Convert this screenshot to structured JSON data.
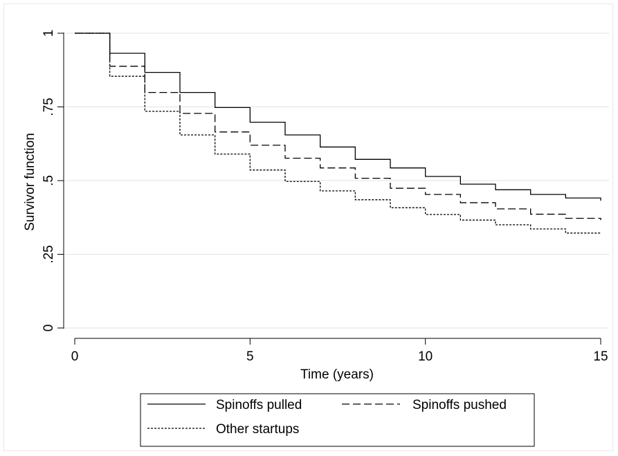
{
  "chart_data": {
    "type": "line",
    "step": true,
    "xlabel": "Time (years)",
    "ylabel": "Survivor function",
    "xlim": [
      0,
      15
    ],
    "ylim": [
      0,
      1
    ],
    "xticks": [
      {
        "value": 0,
        "label": "0"
      },
      {
        "value": 5,
        "label": "5"
      },
      {
        "value": 10,
        "label": "10"
      },
      {
        "value": 15,
        "label": "15"
      }
    ],
    "yticks": [
      {
        "value": 0,
        "label": "0"
      },
      {
        "value": 0.25,
        "label": ".25"
      },
      {
        "value": 0.5,
        "label": ".5"
      },
      {
        "value": 0.75,
        "label": ".75"
      },
      {
        "value": 1,
        "label": "1"
      }
    ],
    "grid": {
      "horizontal": true,
      "vertical": false
    },
    "legend_position": "bottom",
    "x": [
      0,
      1,
      2,
      3,
      4,
      5,
      6,
      7,
      8,
      9,
      10,
      11,
      12,
      13,
      14,
      15
    ],
    "series": [
      {
        "name": "Spinoffs pulled",
        "style": "solid",
        "values": [
          1.0,
          0.932,
          0.867,
          0.799,
          0.748,
          0.698,
          0.655,
          0.614,
          0.572,
          0.543,
          0.514,
          0.488,
          0.469,
          0.453,
          0.441,
          0.432
        ]
      },
      {
        "name": "Spinoffs pushed",
        "style": "dashed",
        "values": [
          1.0,
          0.888,
          0.799,
          0.728,
          0.665,
          0.62,
          0.576,
          0.543,
          0.508,
          0.474,
          0.453,
          0.425,
          0.404,
          0.386,
          0.372,
          0.366
        ]
      },
      {
        "name": "Other startups",
        "style": "dotted",
        "values": [
          1.0,
          0.854,
          0.735,
          0.655,
          0.59,
          0.536,
          0.497,
          0.465,
          0.435,
          0.408,
          0.385,
          0.366,
          0.35,
          0.336,
          0.322,
          0.322
        ]
      }
    ]
  }
}
